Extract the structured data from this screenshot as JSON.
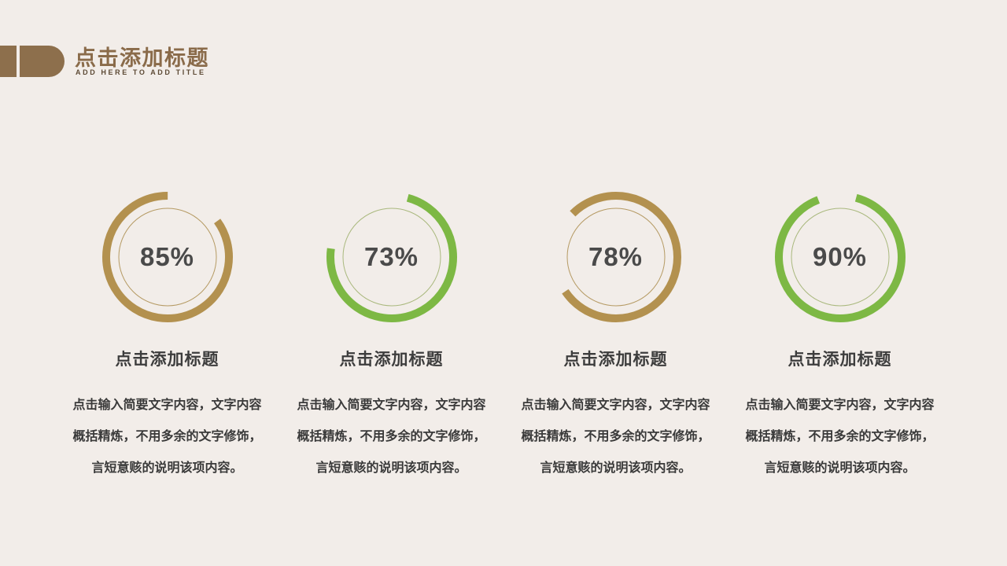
{
  "slide": {
    "background_color": "#f2ede9"
  },
  "header": {
    "logo_color": "#8d6f4c",
    "title": "点击添加标题",
    "title_color": "#8a6b4a",
    "subtitle": "ADD HERE TO ADD TITLE",
    "subtitle_color": "#5d4a35"
  },
  "chart_data": {
    "type": "pie",
    "subtype": "donut-progress-rings",
    "categories": [
      "点击添加标题",
      "点击添加标题",
      "点击添加标题",
      "点击添加标题"
    ],
    "values": [
      85,
      73,
      78,
      90
    ],
    "unit": "%",
    "colors": [
      "#b3914f",
      "#7db844",
      "#b3914f",
      "#7db844"
    ],
    "title": "点击添加标题",
    "legend": "none",
    "grid": false
  },
  "columns": [
    {
      "percent_label": "85%",
      "pct": 85,
      "ring_color": "#b3914f",
      "inner_ring_color": "#b59a63",
      "rotation": -36,
      "title": "点击添加标题",
      "body_line1": "点击输入简要文字内容，文字内容",
      "body_line2": "概括精炼，不用多余的文字修饰，",
      "body_line3": "言短意赅的说明该项内容。"
    },
    {
      "percent_label": "73%",
      "pct": 73,
      "ring_color": "#7db844",
      "inner_ring_color": "#a9b87d",
      "rotation": -75,
      "title": "点击添加标题",
      "body_line1": "点击输入简要文字内容，文字内容",
      "body_line2": "概括精炼，不用多余的文字修饰，",
      "body_line3": "言短意赅的说明该项内容。"
    },
    {
      "percent_label": "78%",
      "pct": 78,
      "ring_color": "#b3914f",
      "inner_ring_color": "#b59a63",
      "rotation": 225,
      "title": "点击添加标题",
      "body_line1": "点击输入简要文字内容，文字内容",
      "body_line2": "概括精炼，不用多余的文字修饰，",
      "body_line3": "言短意赅的说明该项内容。"
    },
    {
      "percent_label": "90%",
      "pct": 90,
      "ring_color": "#7db844",
      "inner_ring_color": "#a9b87d",
      "rotation": -75,
      "title": "点击添加标题",
      "body_line1": "点击输入简要文字内容，文字内容",
      "body_line2": "概括精炼，不用多余的文字修饰，",
      "body_line3": "言短意赅的说明该项内容。"
    }
  ]
}
